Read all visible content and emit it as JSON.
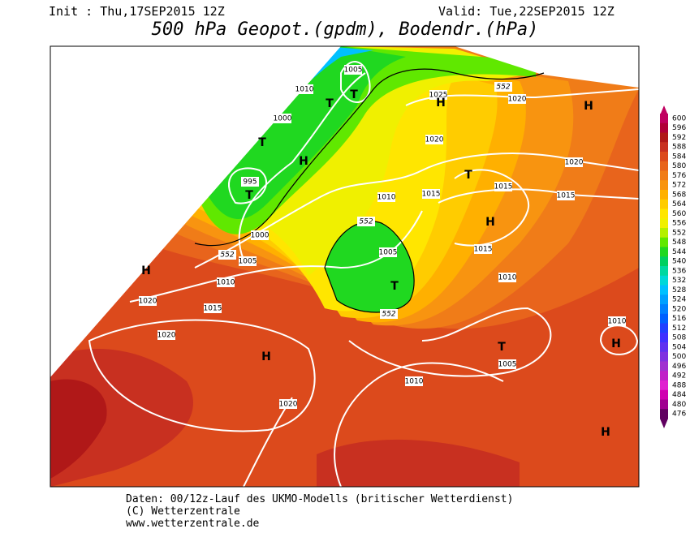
{
  "header": {
    "init": "Init : Thu,17SEP2015 12Z",
    "valid": "Valid: Tue,22SEP2015 12Z",
    "title": "500 hPa Geopot.(gpdm), Bodendr.(hPa)"
  },
  "map": {
    "labels": [
      "1005",
      "1010",
      "1000",
      "995",
      "1000",
      "552",
      "1005",
      "1010",
      "1020",
      "1015",
      "1020",
      "1020",
      "1010",
      "1005",
      "1010",
      "1015",
      "1010",
      "1015",
      "1015",
      "1015",
      "1020",
      "1020",
      "1025",
      "1020",
      "552",
      "552",
      "1005",
      "552",
      "1010"
    ],
    "centers": [
      "T",
      "T",
      "T",
      "H",
      "T",
      "H",
      "H",
      "T",
      "H",
      "H",
      "T",
      "H",
      "T",
      "H",
      "H"
    ]
  },
  "legend": {
    "levels": [
      {
        "value": "600",
        "color": "#c00060"
      },
      {
        "value": "596",
        "color": "#b00038"
      },
      {
        "value": "592",
        "color": "#b01818"
      },
      {
        "value": "588",
        "color": "#c83020"
      },
      {
        "value": "584",
        "color": "#dc4a1c"
      },
      {
        "value": "580",
        "color": "#e8641c"
      },
      {
        "value": "576",
        "color": "#f07c18"
      },
      {
        "value": "572",
        "color": "#f89410"
      },
      {
        "value": "568",
        "color": "#ffb000"
      },
      {
        "value": "564",
        "color": "#ffcc00"
      },
      {
        "value": "560",
        "color": "#ffe600"
      },
      {
        "value": "556",
        "color": "#f0f000"
      },
      {
        "value": "552",
        "color": "#b4f000"
      },
      {
        "value": "548",
        "color": "#60e800"
      },
      {
        "value": "544",
        "color": "#20d820"
      },
      {
        "value": "540",
        "color": "#00d060"
      },
      {
        "value": "536",
        "color": "#00d8a0"
      },
      {
        "value": "532",
        "color": "#00d8d8"
      },
      {
        "value": "528",
        "color": "#00c0ff"
      },
      {
        "value": "524",
        "color": "#00a0ff"
      },
      {
        "value": "520",
        "color": "#0080ff"
      },
      {
        "value": "516",
        "color": "#0060ff"
      },
      {
        "value": "512",
        "color": "#2040ff"
      },
      {
        "value": "508",
        "color": "#4030ff"
      },
      {
        "value": "504",
        "color": "#6030f0"
      },
      {
        "value": "500",
        "color": "#8030e0"
      },
      {
        "value": "496",
        "color": "#a030d0"
      },
      {
        "value": "492",
        "color": "#c020c8"
      },
      {
        "value": "488",
        "color": "#e020d0"
      },
      {
        "value": "484",
        "color": "#d000b0"
      },
      {
        "value": "480",
        "color": "#a00090"
      },
      {
        "value": "476",
        "color": "#600060"
      }
    ]
  },
  "footer": {
    "lines": [
      "Daten: 00/12z-Lauf des UKMO-Modells (britischer Wetterdienst)",
      "(C) Wetterzentrale",
      "www.wetterzentrale.de"
    ]
  }
}
